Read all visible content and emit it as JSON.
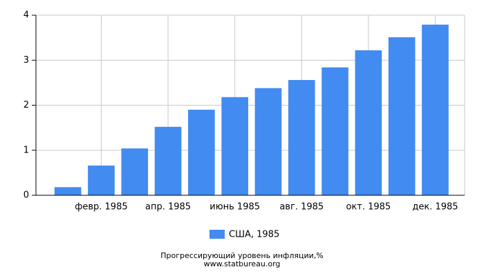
{
  "chart_data": {
    "type": "bar",
    "title": "Прогрессирующий уровень инфляции,%",
    "subtitle": "www.statbureau.org",
    "categories": [
      null,
      "февр. 1985",
      null,
      "апр. 1985",
      null,
      "июнь 1985",
      null,
      "авг. 1985",
      null,
      "окт. 1985",
      null,
      "дек. 1985"
    ],
    "series": [
      {
        "name": "США, 1985",
        "color": "#428bf0",
        "values": [
          0.18,
          0.66,
          1.04,
          1.52,
          1.9,
          2.18,
          2.38,
          2.56,
          2.84,
          3.22,
          3.51,
          3.79
        ]
      }
    ],
    "ylim": [
      0,
      4
    ],
    "yticks": [
      0,
      1,
      2,
      3,
      4
    ],
    "grid": true
  }
}
